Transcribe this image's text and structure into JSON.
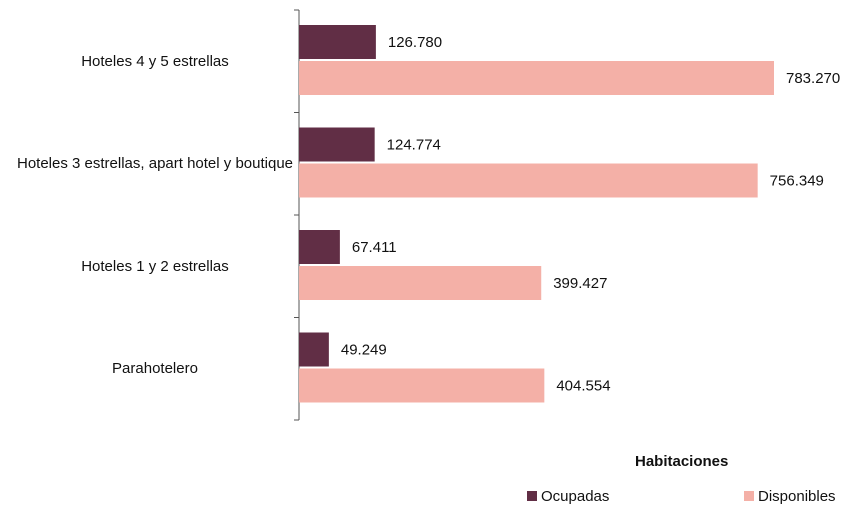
{
  "chart_data": {
    "type": "bar",
    "orientation": "horizontal",
    "categories": [
      "Hoteles 4 y 5 estrellas",
      "Hoteles 3 estrellas, apart hotel y boutique",
      "Hoteles 1 y 2 estrellas",
      "Parahotelero"
    ],
    "legend_title": "Habitaciones",
    "series": [
      {
        "name": "Ocupadas",
        "color": "#612e45",
        "values": [
          126780,
          124774,
          67411,
          49249
        ],
        "value_labels": [
          "126.780",
          "124.774",
          "67.411",
          "49.249"
        ]
      },
      {
        "name": "Disponibles",
        "color": "#f4b0a7",
        "values": [
          783270,
          756349,
          399427,
          404554
        ],
        "value_labels": [
          "783.270",
          "756.349",
          "399.427",
          "404.554"
        ]
      }
    ]
  }
}
